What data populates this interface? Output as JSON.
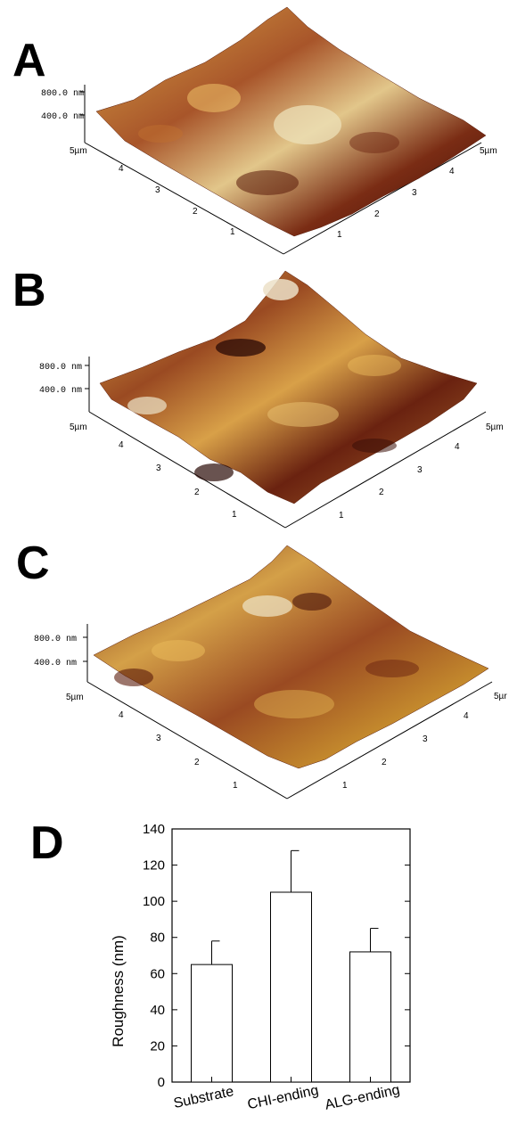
{
  "panels": [
    {
      "letter": "A",
      "z_labels": [
        "800.0 nm",
        "400.0 nm"
      ],
      "axis_max_label": "5µm",
      "left_ticks": [
        "4",
        "3",
        "2",
        "1"
      ],
      "right_ticks": [
        "1",
        "2",
        "3",
        "4"
      ],
      "right_max_label": "5µm"
    },
    {
      "letter": "B",
      "z_labels": [
        "800.0 nm",
        "400.0 nm"
      ],
      "axis_max_label": "5µm",
      "left_ticks": [
        "4",
        "3",
        "2",
        "1"
      ],
      "right_ticks": [
        "1",
        "2",
        "3",
        "4"
      ],
      "right_max_label": "5µm"
    },
    {
      "letter": "C",
      "z_labels": [
        "800.0 nm",
        "400.0 nm"
      ],
      "axis_max_label": "5µm",
      "left_ticks": [
        "4",
        "3",
        "2",
        "1"
      ],
      "right_ticks": [
        "1",
        "2",
        "3",
        "4"
      ],
      "right_max_label": "5µr"
    }
  ],
  "bar_panel": {
    "letter": "D"
  },
  "chart_data": {
    "type": "bar",
    "categories": [
      "Substrate",
      "CHI-ending",
      "ALG-ending"
    ],
    "values": [
      65,
      105,
      72
    ],
    "errors": [
      13,
      23,
      13
    ],
    "title": "",
    "xlabel": "",
    "ylabel": "Roughness (nm)",
    "ylim": [
      0,
      140
    ],
    "yticks": [
      "0",
      "20",
      "40",
      "60",
      "80",
      "100",
      "120",
      "140"
    ],
    "grid": false,
    "bar_fill": "#ffffff",
    "bar_stroke": "#000000"
  },
  "colors": {
    "afm_dark": "#3a0e08",
    "afm_mid": "#8c3a1c",
    "afm_gold": "#c8902e",
    "afm_light": "#ece0b8"
  }
}
